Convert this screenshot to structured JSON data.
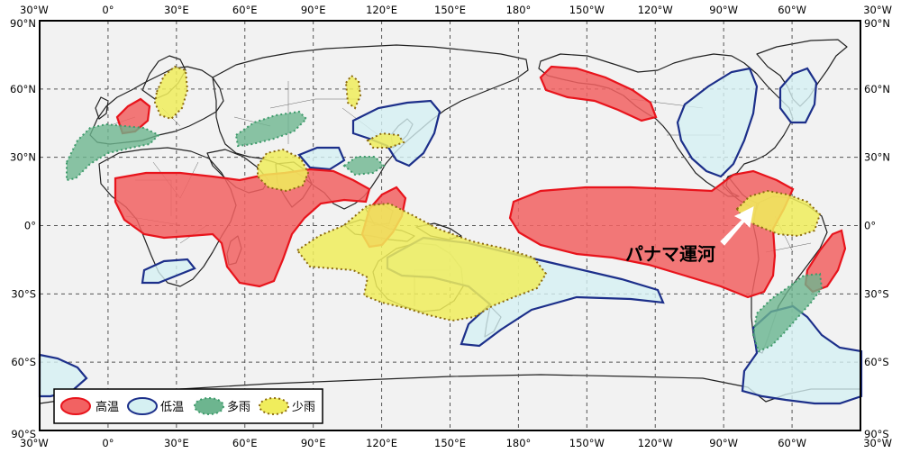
{
  "axes": {
    "top": [
      "30°W",
      "0°",
      "30°E",
      "60°E",
      "90°E",
      "120°E",
      "150°E",
      "180°",
      "150°W",
      "120°W",
      "90°W",
      "60°W",
      "30°W"
    ],
    "bottom": [
      "30°W",
      "0°",
      "30°E",
      "60°E",
      "90°E",
      "120°E",
      "150°E",
      "180°",
      "150°W",
      "120°W",
      "90°W",
      "60°W",
      "30°W"
    ],
    "left": [
      "90°N",
      "60°N",
      "30°N",
      "0°",
      "30°S",
      "60°S",
      "90°S"
    ],
    "right": [
      "90°N",
      "60°N",
      "30°N",
      "0°",
      "30°S",
      "60°S",
      "90°S"
    ]
  },
  "legend": {
    "hot": "高温",
    "cold": "低温",
    "wet": "多雨",
    "dry": "少雨"
  },
  "annotation": {
    "label": "パナマ運河"
  },
  "colors": {
    "hot_fill": "#f26262",
    "hot_stroke": "#e8141c",
    "cold_fill": "#d5f0f2",
    "cold_stroke": "#1c2f8a",
    "wet_fill": "#6db58f",
    "wet_stroke": "#3e9a6b",
    "dry_fill": "#f0ed5c",
    "dry_stroke": "#8c6a10",
    "ocean": "#f2f2f2"
  }
}
